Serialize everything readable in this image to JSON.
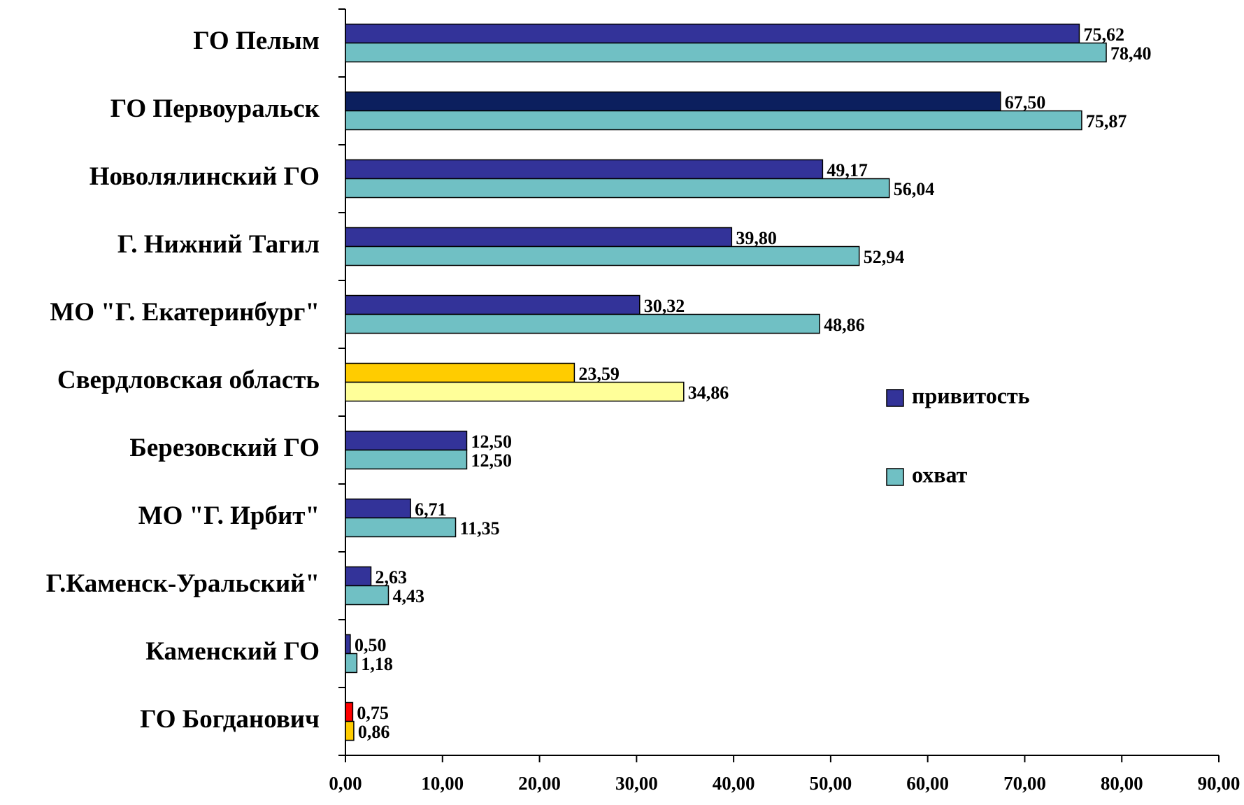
{
  "chart_data": {
    "type": "hbar",
    "categories": [
      "ГО Пелым",
      "ГО Первоуральск",
      "Новолялинский ГО",
      "Г. Нижний Тагил",
      "МО \"Г. Екатеринбург\"",
      "Свердловская область",
      "Березовский ГО",
      "МО \"Г. Ирбит\"",
      "Г.Каменск-Уральский\"",
      "Каменский ГО",
      "ГО  Богданович"
    ],
    "series": [
      {
        "name": "привитость",
        "color": "#333399",
        "colors": [
          "#333399",
          "#0c1f5e",
          "#333399",
          "#333399",
          "#333399",
          "#ffcc00",
          "#333399",
          "#333399",
          "#333399",
          "#333399",
          "#ff0000"
        ],
        "values": [
          75.62,
          67.5,
          49.17,
          39.8,
          30.32,
          23.59,
          12.5,
          6.71,
          2.63,
          0.5,
          0.75
        ],
        "value_labels": [
          "75,62",
          "67,50",
          "49,17",
          "39,80",
          "30,32",
          "23,59",
          "12,50",
          "6,71",
          "2,63",
          "0,50",
          "0,75"
        ]
      },
      {
        "name": "охват",
        "color": "#70c0c4",
        "colors": [
          "#70c0c4",
          "#70c0c4",
          "#70c0c4",
          "#70c0c4",
          "#70c0c4",
          "#ffff99",
          "#70c0c4",
          "#70c0c4",
          "#70c0c4",
          "#70c0c4",
          "#ffcc00"
        ],
        "values": [
          78.4,
          75.87,
          56.04,
          52.94,
          48.86,
          34.86,
          12.5,
          11.35,
          4.43,
          1.18,
          0.86
        ],
        "value_labels": [
          "78,40",
          "75,87",
          "56,04",
          "52,94",
          "48,86",
          "34,86",
          "12,50",
          "11,35",
          "4,43",
          "1,18",
          "0,86"
        ]
      }
    ],
    "xlim": [
      0,
      90
    ],
    "xticks": [
      {
        "value": 0,
        "label": "0,00"
      },
      {
        "value": 10,
        "label": "10,00"
      },
      {
        "value": 20,
        "label": "20,00"
      },
      {
        "value": 30,
        "label": "30,00"
      },
      {
        "value": 40,
        "label": "40,00"
      },
      {
        "value": 50,
        "label": "50,00"
      },
      {
        "value": 60,
        "label": "60,00"
      },
      {
        "value": 70,
        "label": "70,00"
      },
      {
        "value": 80,
        "label": "80,00"
      },
      {
        "value": 90,
        "label": "90,00"
      }
    ],
    "legend": "right"
  }
}
